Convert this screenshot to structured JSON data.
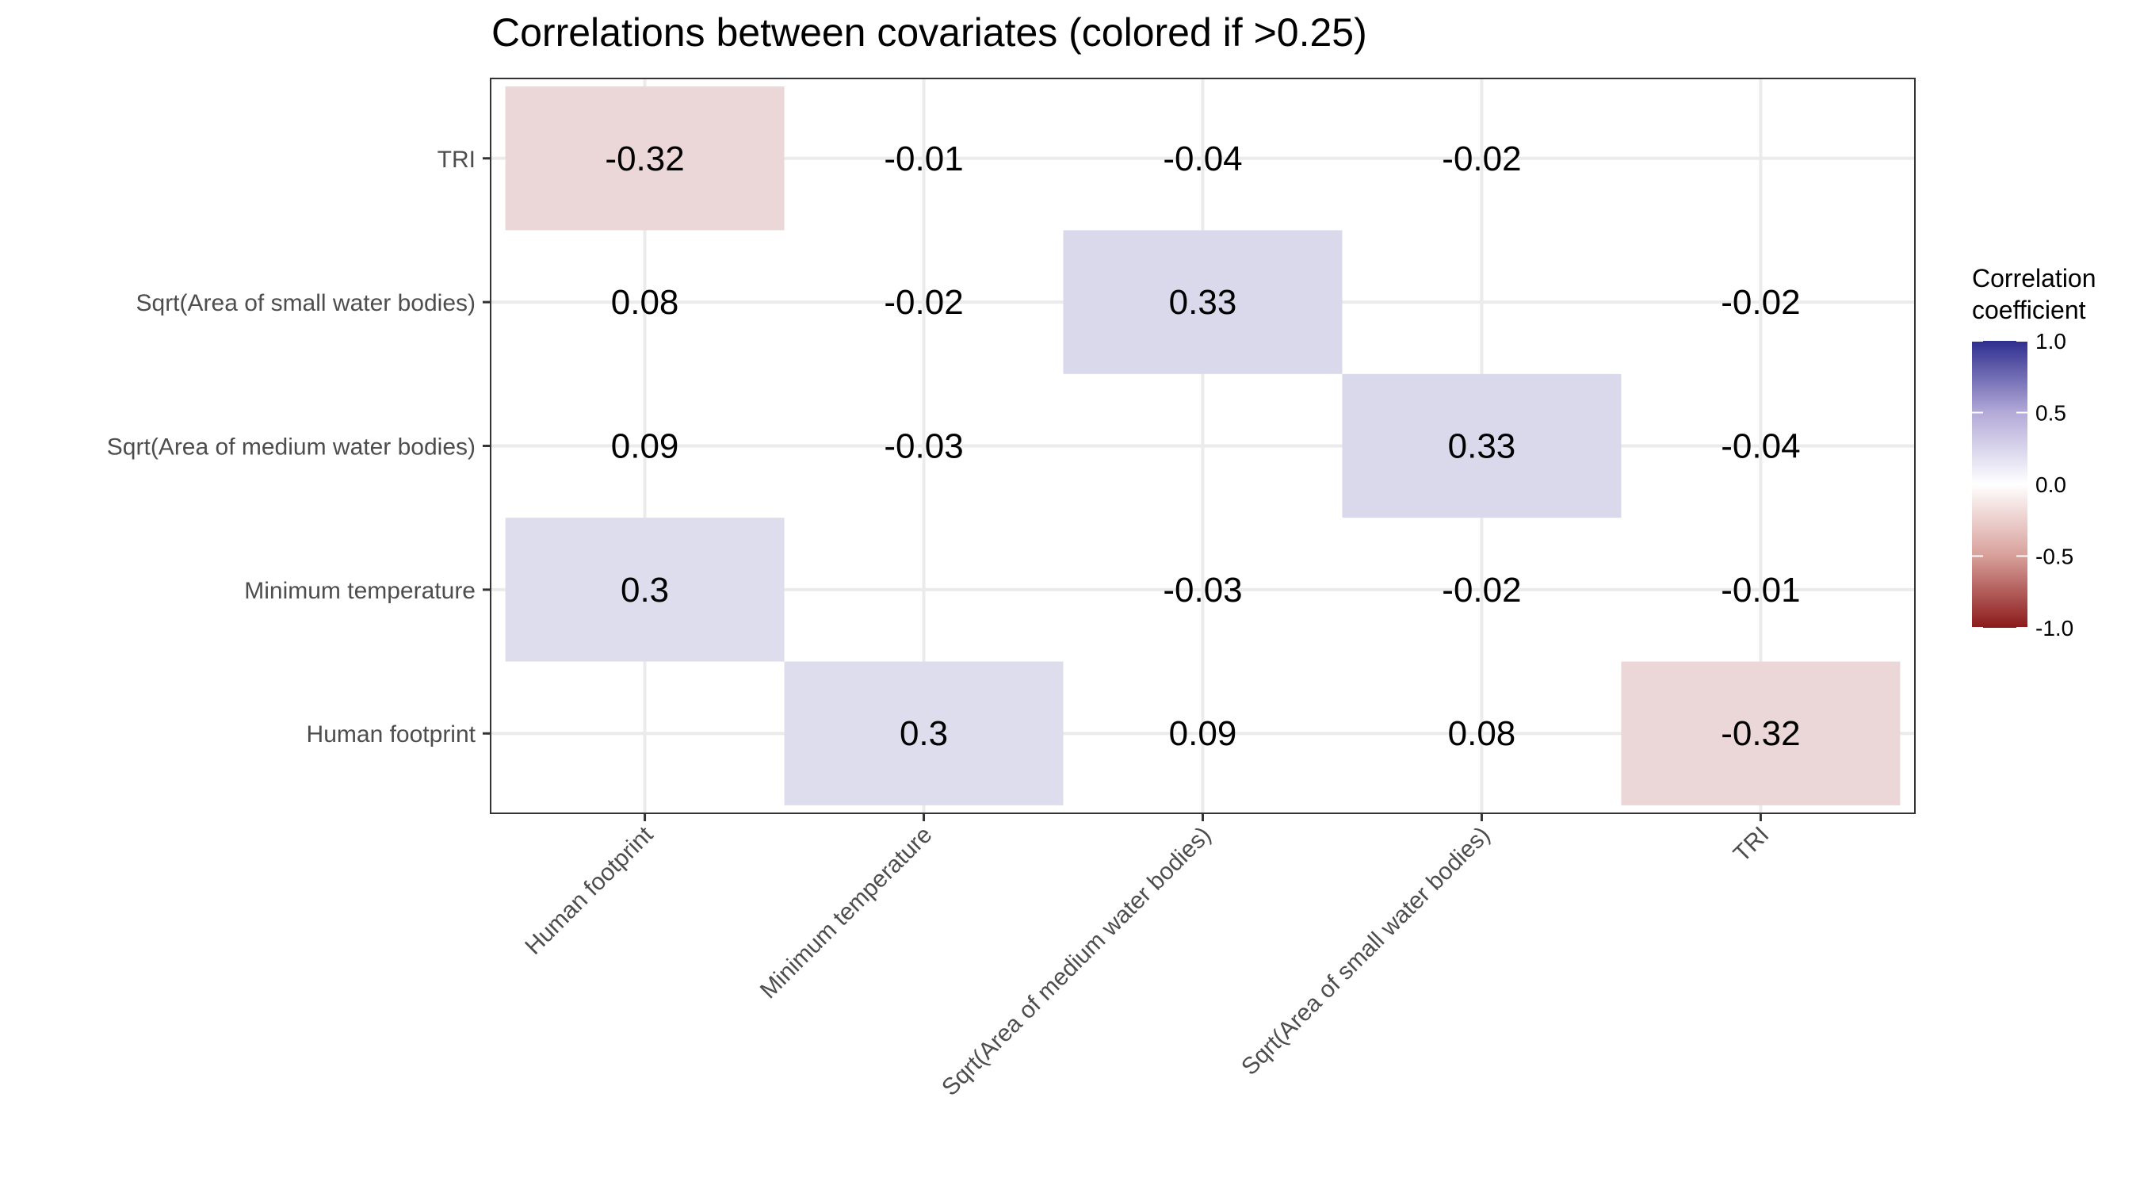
{
  "chart_data": {
    "type": "heatmap",
    "title": "Correlations between covariates (colored if >0.25)",
    "xlabel": "",
    "ylabel": "",
    "x_categories": [
      "Human footprint",
      "Minimum temperature",
      "Sqrt(Area of medium water bodies)",
      "Sqrt(Area of small water bodies)",
      "TRI"
    ],
    "y_categories": [
      "Human footprint",
      "Minimum temperature",
      "Sqrt(Area of medium water bodies)",
      "Sqrt(Area of small water bodies)",
      "TRI"
    ],
    "cells": [
      {
        "x": "Human footprint",
        "y": "TRI",
        "value": -0.32,
        "label": "-0.32",
        "colored": true
      },
      {
        "x": "Minimum temperature",
        "y": "TRI",
        "value": -0.01,
        "label": "-0.01",
        "colored": false
      },
      {
        "x": "Sqrt(Area of medium water bodies)",
        "y": "TRI",
        "value": -0.04,
        "label": "-0.04",
        "colored": false
      },
      {
        "x": "Sqrt(Area of small water bodies)",
        "y": "TRI",
        "value": -0.02,
        "label": "-0.02",
        "colored": false
      },
      {
        "x": "Human footprint",
        "y": "Sqrt(Area of small water bodies)",
        "value": 0.08,
        "label": "0.08",
        "colored": false
      },
      {
        "x": "Minimum temperature",
        "y": "Sqrt(Area of small water bodies)",
        "value": -0.02,
        "label": "-0.02",
        "colored": false
      },
      {
        "x": "Sqrt(Area of medium water bodies)",
        "y": "Sqrt(Area of small water bodies)",
        "value": 0.33,
        "label": "0.33",
        "colored": true
      },
      {
        "x": "TRI",
        "y": "Sqrt(Area of small water bodies)",
        "value": -0.02,
        "label": "-0.02",
        "colored": false
      },
      {
        "x": "Human footprint",
        "y": "Sqrt(Area of medium water bodies)",
        "value": 0.09,
        "label": "0.09",
        "colored": false
      },
      {
        "x": "Minimum temperature",
        "y": "Sqrt(Area of medium water bodies)",
        "value": -0.03,
        "label": "-0.03",
        "colored": false
      },
      {
        "x": "Sqrt(Area of small water bodies)",
        "y": "Sqrt(Area of medium water bodies)",
        "value": 0.33,
        "label": "0.33",
        "colored": true
      },
      {
        "x": "TRI",
        "y": "Sqrt(Area of medium water bodies)",
        "value": -0.04,
        "label": "-0.04",
        "colored": false
      },
      {
        "x": "Human footprint",
        "y": "Minimum temperature",
        "value": 0.3,
        "label": "0.3",
        "colored": true
      },
      {
        "x": "Sqrt(Area of medium water bodies)",
        "y": "Minimum temperature",
        "value": -0.03,
        "label": "-0.03",
        "colored": false
      },
      {
        "x": "Sqrt(Area of small water bodies)",
        "y": "Minimum temperature",
        "value": -0.02,
        "label": "-0.02",
        "colored": false
      },
      {
        "x": "TRI",
        "y": "Minimum temperature",
        "value": -0.01,
        "label": "-0.01",
        "colored": false
      },
      {
        "x": "Minimum temperature",
        "y": "Human footprint",
        "value": 0.3,
        "label": "0.3",
        "colored": true
      },
      {
        "x": "Sqrt(Area of medium water bodies)",
        "y": "Human footprint",
        "value": 0.09,
        "label": "0.09",
        "colored": false
      },
      {
        "x": "Sqrt(Area of small water bodies)",
        "y": "Human footprint",
        "value": 0.08,
        "label": "0.08",
        "colored": false
      },
      {
        "x": "TRI",
        "y": "Human footprint",
        "value": -0.32,
        "label": "-0.32",
        "colored": true
      }
    ],
    "legend": {
      "title_lines": [
        "Correlation",
        "coefficient"
      ],
      "range": [
        -1.0,
        1.0
      ],
      "ticks": [
        1.0,
        0.5,
        0.0,
        -0.5,
        -1.0
      ],
      "tick_labels": [
        "1.0",
        "0.5",
        "0.0",
        "-0.5",
        "-1.0"
      ],
      "placement": "right",
      "colors": {
        "low": "#8b1a1a",
        "mid": "#ffffff",
        "high": "#2e2e8f"
      }
    },
    "grid": true
  }
}
